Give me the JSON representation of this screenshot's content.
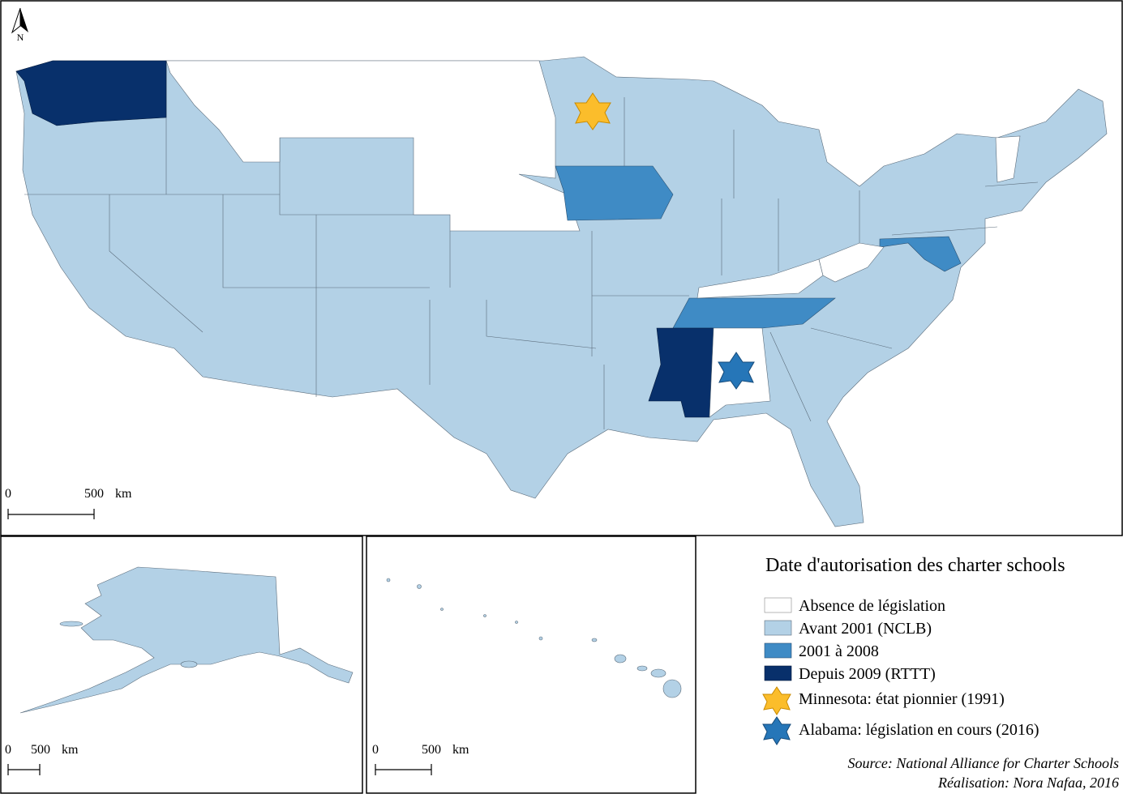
{
  "north": "N",
  "main_scale": {
    "zero": "0",
    "distance": "500",
    "unit": "km"
  },
  "alaska_scale": {
    "zero": "0",
    "distance": "500",
    "unit": "km"
  },
  "hawaii_scale": {
    "zero": "0",
    "distance": "500",
    "unit": "km"
  },
  "legend": {
    "title": "Date d'autorisation des charter schools",
    "items": [
      "Absence de législation",
      "Avant 2001 (NCLB)",
      "2001 à 2008",
      "Depuis 2009 (RTTT)",
      "Minnesota: état pionnier (1991)",
      "Alabama: législation en cours (2016)"
    ]
  },
  "source": "Source: National Alliance for Charter Schools",
  "credit": "Réalisation: Nora Nafaa, 2016"
}
